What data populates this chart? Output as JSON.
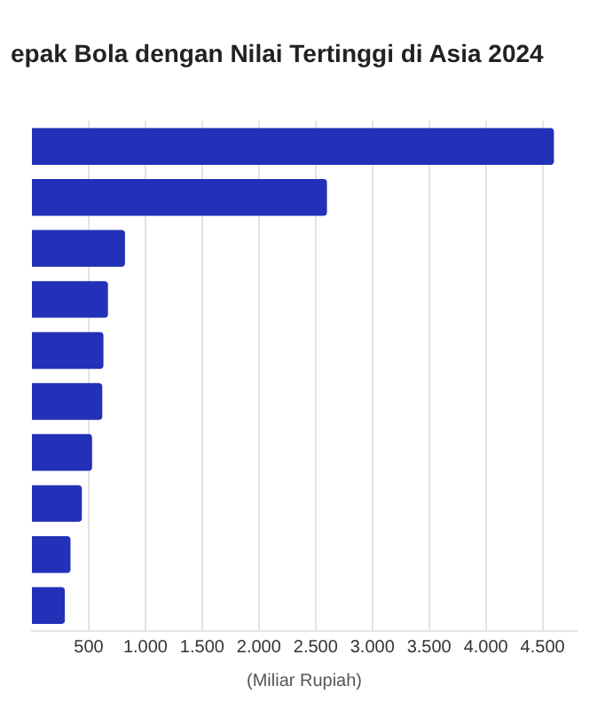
{
  "chart_data": {
    "type": "bar",
    "orientation": "horizontal",
    "title": "epak Bola dengan Nilai Tertinggi di Asia 2024",
    "xlabel": "(Miliar Rupiah)",
    "categories": [
      null,
      null,
      null,
      null,
      null,
      null,
      null,
      null,
      null,
      null
    ],
    "values": [
      4600,
      2600,
      820,
      670,
      630,
      620,
      530,
      440,
      340,
      290
    ],
    "color": "#2330b8",
    "xlim": [
      0,
      4800
    ],
    "xticks": [
      500,
      {
        "value": 1000,
        "label": "1.000"
      },
      {
        "value": 1500,
        "label": "1.500"
      },
      {
        "value": 2000,
        "label": "2.000"
      },
      {
        "value": 2500,
        "label": "2.500"
      },
      {
        "value": 3000,
        "label": "3.000"
      },
      {
        "value": 3500,
        "label": "3.500"
      },
      {
        "value": 4000,
        "label": "4.000"
      },
      {
        "value": 4500,
        "label": "4.500"
      }
    ],
    "grid": "x"
  }
}
